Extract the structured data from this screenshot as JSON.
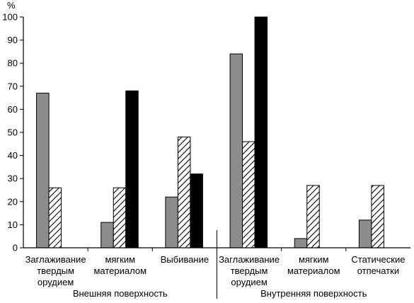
{
  "chart_data": {
    "type": "bar",
    "ylabel": "%",
    "ylim": [
      0,
      100
    ],
    "yticks": [
      0,
      10,
      20,
      30,
      40,
      50,
      60,
      70,
      80,
      90,
      100
    ],
    "grid": false,
    "legend": "none",
    "series_styles": [
      {
        "fill": "#8c8c8c",
        "pattern": "solid"
      },
      {
        "fill": "#ffffff",
        "pattern": "hatch"
      },
      {
        "fill": "#000000",
        "pattern": "solid"
      }
    ],
    "categories": [
      {
        "lines": [
          "Заглаживание",
          "твердым",
          "орудием"
        ],
        "values": [
          67,
          26,
          0
        ]
      },
      {
        "lines": [
          "мягким",
          "материалом"
        ],
        "values": [
          11,
          26,
          68
        ]
      },
      {
        "lines": [
          "Выбивание"
        ],
        "values": [
          22,
          48,
          32
        ]
      },
      {
        "lines": [
          "Заглаживание",
          "твердым",
          "орудием"
        ],
        "values": [
          84,
          46,
          100
        ]
      },
      {
        "lines": [
          "мягким",
          "материалом"
        ],
        "values": [
          4,
          27,
          0
        ]
      },
      {
        "lines": [
          "Статические",
          "отпечатки"
        ],
        "values": [
          12,
          27,
          0
        ]
      }
    ],
    "groups": [
      {
        "label": "Внешняя поверхность",
        "categories": [
          0,
          1,
          2
        ]
      },
      {
        "label": "Внутренняя поверхность",
        "categories": [
          3,
          4,
          5
        ]
      }
    ]
  }
}
